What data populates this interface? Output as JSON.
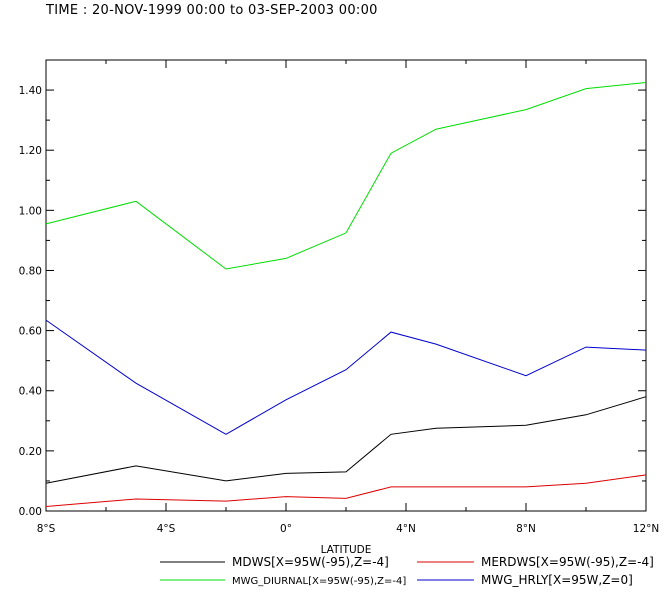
{
  "header": {
    "time_label": "TIME : 20-NOV-1999 00:00 to 03-SEP-2003 00:00"
  },
  "chart_data": {
    "type": "line",
    "xlabel": "LATITUDE",
    "ylabel": "",
    "xlim": [
      -8,
      12
    ],
    "ylim": [
      0,
      1.5
    ],
    "grid": false,
    "legend_position": "bottom",
    "x_ticks": [
      {
        "value": -8,
        "label": "8°S"
      },
      {
        "value": -4,
        "label": "4°S"
      },
      {
        "value": 0,
        "label": "0°"
      },
      {
        "value": 4,
        "label": "4°N"
      },
      {
        "value": 8,
        "label": "8°N"
      },
      {
        "value": 12,
        "label": "12°N"
      }
    ],
    "y_ticks": [
      {
        "value": 0.0,
        "label": "0.00"
      },
      {
        "value": 0.2,
        "label": "0.20"
      },
      {
        "value": 0.4,
        "label": "0.40"
      },
      {
        "value": 0.6,
        "label": "0.60"
      },
      {
        "value": 0.8,
        "label": "0.80"
      },
      {
        "value": 1.0,
        "label": "1.00"
      },
      {
        "value": 1.2,
        "label": "1.20"
      },
      {
        "value": 1.4,
        "label": "1.40"
      }
    ],
    "series": [
      {
        "name": "MDWS[X=95W(-95),Z=-4]",
        "color": "#000000",
        "x": [
          -8,
          -5,
          -2,
          0,
          2,
          3.5,
          5,
          8,
          10,
          12
        ],
        "values": [
          0.092,
          0.15,
          0.1,
          0.125,
          0.13,
          0.255,
          0.275,
          0.285,
          0.32,
          0.38
        ]
      },
      {
        "name": "MERDWS[X=95W(-95),Z=-4]",
        "color": "#dd0000",
        "x": [
          -8,
          -5,
          -2,
          0,
          2,
          3.5,
          5,
          8,
          10,
          12
        ],
        "values": [
          0.015,
          0.04,
          0.033,
          0.048,
          0.042,
          0.08,
          0.08,
          0.08,
          0.092,
          0.12
        ]
      },
      {
        "name": "MWG_DIURNAL[X=95W(-95),Z=-4]",
        "color": "#00dd00",
        "x": [
          -8,
          -5,
          -2,
          0,
          2,
          3.5,
          5,
          8,
          10,
          12
        ],
        "values": [
          0.955,
          1.03,
          0.805,
          0.84,
          0.925,
          1.19,
          1.27,
          1.335,
          1.405,
          1.425
        ]
      },
      {
        "name": "MWG_HRLY[X=95W,Z=0]",
        "color": "#0000cc",
        "x": [
          -8,
          -5,
          -2,
          0,
          2,
          3.5,
          5,
          8,
          10,
          12
        ],
        "values": [
          0.635,
          0.425,
          0.255,
          0.37,
          0.47,
          0.595,
          0.555,
          0.45,
          0.545,
          0.535
        ]
      }
    ]
  }
}
